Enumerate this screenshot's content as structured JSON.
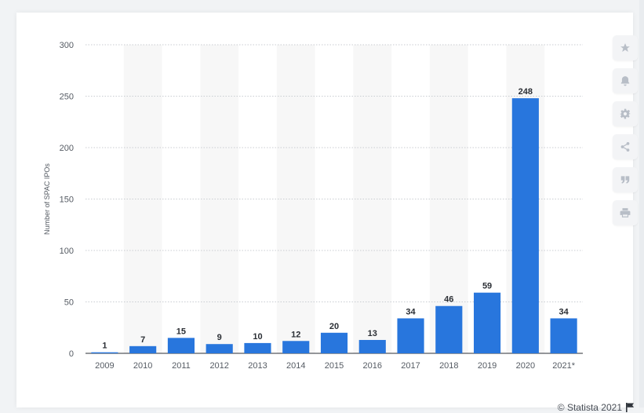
{
  "chart_data": {
    "type": "bar",
    "categories": [
      "2009",
      "2010",
      "2011",
      "2012",
      "2013",
      "2014",
      "2015",
      "2016",
      "2017",
      "2018",
      "2019",
      "2020",
      "2021*"
    ],
    "values": [
      1,
      7,
      15,
      9,
      10,
      12,
      20,
      13,
      34,
      46,
      59,
      248,
      34
    ],
    "data_labels": [
      "1",
      "7",
      "15",
      "9",
      "10",
      "12",
      "20",
      "13",
      "34",
      "46",
      "59",
      "248",
      "34"
    ],
    "title": "",
    "xlabel": "",
    "ylabel": "Number of SPAC IPOs",
    "ylim": [
      0,
      300
    ],
    "yticks": [
      0,
      50,
      100,
      150,
      200,
      250,
      300
    ],
    "ytick_labels": [
      "0",
      "50",
      "100",
      "150",
      "200",
      "250",
      "300"
    ],
    "grid": true,
    "bar_color": "#2876dd",
    "band_color": "#f7f7f7"
  },
  "toolbar": {
    "icons": [
      "star-icon",
      "bell-icon",
      "gear-icon",
      "share-icon",
      "quote-icon",
      "print-icon"
    ]
  },
  "footer": {
    "copyright": "© Statista 2021"
  }
}
